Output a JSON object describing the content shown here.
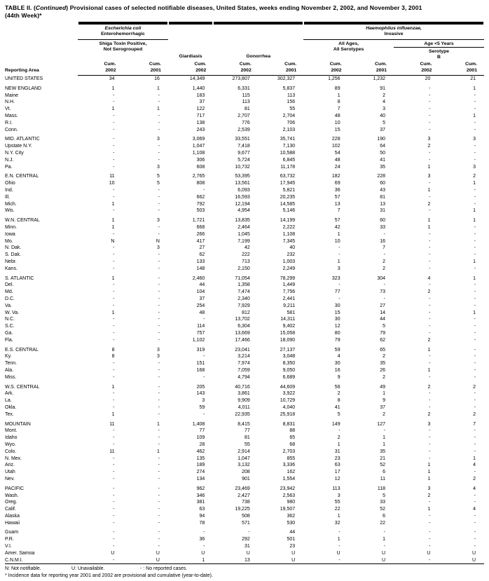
{
  "title": {
    "part1": "TABLE II. (",
    "continued": "Continued",
    "part2": ") Provisional cases of selected notifiable diseases, United States, weeks ending November 2, 2002, and November 3, 2001",
    "line2": "(44th Week)*"
  },
  "header": {
    "reporting_area": "Reporting Area",
    "ecoli_group_italic": "Escherichia coli",
    "ecoli_group_rest": "Enterohemorrhagic",
    "shiga": "Shiga Toxin Positive,\nNot Serogrouped",
    "giardiasis": "Giardiasis",
    "gonorrhea": "Gonorrhea",
    "hflu_group_italic": "Haemophilus influenzae,",
    "hflu_group_rest": "Invasive",
    "all_ages": "All Ages,\nAll Serotypes",
    "age_under_5": "Age <5 Years",
    "serotype_b": "Serotype\nB",
    "cum_2002": "Cum.\n2002",
    "cum_2001": "Cum.\n2001"
  },
  "table": {
    "sections": [
      {
        "rows": [
          {
            "area": "UNITED STATES",
            "values": [
              "34",
              "16",
              "14,349",
              "273,807",
              "302,327",
              "1,256",
              "1,232",
              "20",
              "21"
            ]
          }
        ]
      },
      {
        "rows": [
          {
            "area": "NEW ENGLAND",
            "values": [
              "1",
              "1",
              "1,440",
              "6,331",
              "5,837",
              "89",
              "91",
              "-",
              "1"
            ]
          },
          {
            "area": "Maine",
            "values": [
              "-",
              "-",
              "183",
              "115",
              "113",
              "1",
              "2",
              "-",
              "-"
            ]
          },
          {
            "area": "N.H.",
            "values": [
              "-",
              "-",
              "37",
              "113",
              "156",
              "8",
              "4",
              "-",
              "-"
            ]
          },
          {
            "area": "Vt.",
            "values": [
              "1",
              "1",
              "122",
              "81",
              "55",
              "7",
              "3",
              "-",
              "-"
            ]
          },
          {
            "area": "Mass.",
            "values": [
              "-",
              "-",
              "717",
              "2,707",
              "2,704",
              "48",
              "40",
              "-",
              "1"
            ]
          },
          {
            "area": "R.I.",
            "values": [
              "-",
              "-",
              "138",
              "776",
              "706",
              "10",
              "5",
              "-",
              "-"
            ]
          },
          {
            "area": "Conn.",
            "values": [
              "-",
              "-",
              "243",
              "2,539",
              "2,103",
              "15",
              "37",
              "-",
              "-"
            ]
          }
        ]
      },
      {
        "rows": [
          {
            "area": "MID. ATLANTIC",
            "values": [
              "-",
              "3",
              "3,069",
              "33,551",
              "35,741",
              "228",
              "190",
              "3",
              "3"
            ]
          },
          {
            "area": "Upstate N.Y.",
            "values": [
              "-",
              "-",
              "1,047",
              "7,418",
              "7,130",
              "102",
              "64",
              "2",
              "-"
            ]
          },
          {
            "area": "N.Y. City",
            "values": [
              "-",
              "-",
              "1,108",
              "9,677",
              "10,588",
              "54",
              "50",
              "-",
              "-"
            ]
          },
          {
            "area": "N.J.",
            "values": [
              "-",
              "-",
              "306",
              "5,724",
              "6,845",
              "48",
              "41",
              "-",
              "-"
            ]
          },
          {
            "area": "Pa.",
            "values": [
              "-",
              "3",
              "608",
              "10,732",
              "11,178",
              "24",
              "35",
              "1",
              "3"
            ]
          }
        ]
      },
      {
        "rows": [
          {
            "area": "E.N. CENTRAL",
            "values": [
              "11",
              "5",
              "2,765",
              "53,395",
              "63,732",
              "182",
              "228",
              "3",
              "2"
            ]
          },
          {
            "area": "Ohio",
            "values": [
              "10",
              "5",
              "808",
              "13,561",
              "17,945",
              "69",
              "60",
              "-",
              "1"
            ]
          },
          {
            "area": "Ind.",
            "values": [
              "-",
              "-",
              "-",
              "6,093",
              "5,821",
              "36",
              "43",
              "1",
              "-"
            ]
          },
          {
            "area": "Ill.",
            "values": [
              "-",
              "-",
              "662",
              "16,593",
              "20,235",
              "57",
              "81",
              "-",
              "-"
            ]
          },
          {
            "area": "Mich.",
            "values": [
              "1",
              "-",
              "792",
              "12,194",
              "14,585",
              "13",
              "13",
              "2",
              "-"
            ]
          },
          {
            "area": "Wis.",
            "values": [
              "-",
              "-",
              "503",
              "4,954",
              "5,146",
              "7",
              "31",
              "-",
              "1"
            ]
          }
        ]
      },
      {
        "rows": [
          {
            "area": "W.N. CENTRAL",
            "values": [
              "1",
              "3",
              "1,721",
              "13,835",
              "14,199",
              "57",
              "60",
              "1",
              "1"
            ]
          },
          {
            "area": "Minn.",
            "values": [
              "1",
              "-",
              "668",
              "2,464",
              "2,222",
              "42",
              "33",
              "1",
              "-"
            ]
          },
          {
            "area": "Iowa",
            "values": [
              "-",
              "-",
              "266",
              "1,045",
              "1,108",
              "1",
              "-",
              "-",
              "-"
            ]
          },
          {
            "area": "Mo.",
            "values": [
              "N",
              "N",
              "417",
              "7,199",
              "7,345",
              "10",
              "16",
              "-",
              "-"
            ]
          },
          {
            "area": "N. Dak.",
            "values": [
              "-",
              "3",
              "27",
              "42",
              "40",
              "-",
              "7",
              "-",
              "-"
            ]
          },
          {
            "area": "S. Dak.",
            "values": [
              "-",
              "-",
              "62",
              "222",
              "232",
              "-",
              "-",
              "-",
              "-"
            ]
          },
          {
            "area": "Nebr.",
            "values": [
              "-",
              "-",
              "133",
              "713",
              "1,003",
              "1",
              "2",
              "-",
              "1"
            ]
          },
          {
            "area": "Kans.",
            "values": [
              "-",
              "-",
              "148",
              "2,150",
              "2,249",
              "3",
              "2",
              "-",
              "-"
            ]
          }
        ]
      },
      {
        "rows": [
          {
            "area": "S. ATLANTIC",
            "values": [
              "1",
              "-",
              "2,460",
              "71,054",
              "78,299",
              "323",
              "304",
              "4",
              "1"
            ]
          },
          {
            "area": "Del.",
            "values": [
              "-",
              "-",
              "44",
              "1,358",
              "1,449",
              "-",
              "-",
              "-",
              "-"
            ]
          },
          {
            "area": "Md.",
            "values": [
              "-",
              "-",
              "104",
              "7,474",
              "7,756",
              "77",
              "73",
              "2",
              "-"
            ]
          },
          {
            "area": "D.C.",
            "values": [
              "-",
              "-",
              "37",
              "2,340",
              "2,441",
              "-",
              "-",
              "-",
              "-"
            ]
          },
          {
            "area": "Va.",
            "values": [
              "-",
              "-",
              "254",
              "7,929",
              "9,211",
              "30",
              "27",
              "-",
              "-"
            ]
          },
          {
            "area": "W. Va.",
            "values": [
              "1",
              "-",
              "48",
              "812",
              "581",
              "15",
              "14",
              "-",
              "1"
            ]
          },
          {
            "area": "N.C.",
            "values": [
              "-",
              "-",
              "-",
              "13,702",
              "14,311",
              "30",
              "44",
              "-",
              "-"
            ]
          },
          {
            "area": "S.C.",
            "values": [
              "-",
              "-",
              "114",
              "6,304",
              "9,402",
              "12",
              "5",
              "-",
              "-"
            ]
          },
          {
            "area": "Ga.",
            "values": [
              "-",
              "-",
              "757",
              "13,669",
              "15,058",
              "80",
              "79",
              "-",
              "-"
            ]
          },
          {
            "area": "Fla.",
            "values": [
              "-",
              "-",
              "1,102",
              "17,466",
              "18,090",
              "79",
              "62",
              "2",
              "-"
            ]
          }
        ]
      },
      {
        "rows": [
          {
            "area": "E.S. CENTRAL",
            "values": [
              "8",
              "3",
              "319",
              "23,041",
              "27,137",
              "59",
              "65",
              "1",
              "-"
            ]
          },
          {
            "area": "Ky.",
            "values": [
              "8",
              "3",
              "-",
              "3,214",
              "3,048",
              "4",
              "2",
              "-",
              "-"
            ]
          },
          {
            "area": "Tenn.",
            "values": [
              "-",
              "-",
              "151",
              "7,974",
              "8,350",
              "30",
              "35",
              "-",
              "-"
            ]
          },
          {
            "area": "Ala.",
            "values": [
              "-",
              "-",
              "168",
              "7,059",
              "9,050",
              "16",
              "26",
              "1",
              "-"
            ]
          },
          {
            "area": "Miss.",
            "values": [
              "-",
              "-",
              "-",
              "4,794",
              "6,689",
              "9",
              "2",
              "-",
              "-"
            ]
          }
        ]
      },
      {
        "rows": [
          {
            "area": "W.S. CENTRAL",
            "values": [
              "1",
              "-",
              "205",
              "40,716",
              "44,609",
              "56",
              "49",
              "2",
              "2"
            ]
          },
          {
            "area": "Ark.",
            "values": [
              "-",
              "-",
              "143",
              "3,861",
              "3,922",
              "2",
              "1",
              "-",
              "-"
            ]
          },
          {
            "area": "La.",
            "values": [
              "-",
              "-",
              "3",
              "9,909",
              "10,729",
              "8",
              "9",
              "-",
              "-"
            ]
          },
          {
            "area": "Okla.",
            "values": [
              "-",
              "-",
              "59",
              "4,011",
              "4,040",
              "41",
              "37",
              "-",
              "-"
            ]
          },
          {
            "area": "Tex.",
            "values": [
              "1",
              "-",
              "-",
              "22,935",
              "25,918",
              "5",
              "2",
              "2",
              "2"
            ]
          }
        ]
      },
      {
        "rows": [
          {
            "area": "MOUNTAIN",
            "values": [
              "11",
              "1",
              "1,408",
              "8,415",
              "8,831",
              "149",
              "127",
              "3",
              "7"
            ]
          },
          {
            "area": "Mont.",
            "values": [
              "-",
              "-",
              "77",
              "77",
              "88",
              "-",
              "-",
              "-",
              "-"
            ]
          },
          {
            "area": "Idaho",
            "values": [
              "-",
              "-",
              "109",
              "81",
              "65",
              "2",
              "1",
              "-",
              "-"
            ]
          },
          {
            "area": "Wyo.",
            "values": [
              "-",
              "-",
              "28",
              "55",
              "68",
              "1",
              "1",
              "-",
              "-"
            ]
          },
          {
            "area": "Colo.",
            "values": [
              "11",
              "1",
              "462",
              "2,914",
              "2,703",
              "31",
              "35",
              "-",
              "-"
            ]
          },
          {
            "area": "N. Mex.",
            "values": [
              "-",
              "-",
              "135",
              "1,047",
              "855",
              "23",
              "21",
              "-",
              "1"
            ]
          },
          {
            "area": "Ariz.",
            "values": [
              "-",
              "-",
              "189",
              "3,132",
              "3,336",
              "63",
              "52",
              "1",
              "4"
            ]
          },
          {
            "area": "Utah",
            "values": [
              "-",
              "-",
              "274",
              "208",
              "162",
              "17",
              "6",
              "1",
              "-"
            ]
          },
          {
            "area": "Nev.",
            "values": [
              "-",
              "-",
              "134",
              "901",
              "1,554",
              "12",
              "11",
              "1",
              "2"
            ]
          }
        ]
      },
      {
        "rows": [
          {
            "area": "PACIFIC",
            "values": [
              "-",
              "-",
              "962",
              "23,469",
              "23,942",
              "113",
              "118",
              "3",
              "4"
            ]
          },
          {
            "area": "Wash.",
            "values": [
              "-",
              "-",
              "346",
              "2,427",
              "2,563",
              "3",
              "5",
              "2",
              "-"
            ]
          },
          {
            "area": "Oreg.",
            "values": [
              "-",
              "-",
              "381",
              "738",
              "980",
              "55",
              "33",
              "-",
              "-"
            ]
          },
          {
            "area": "Calif.",
            "values": [
              "-",
              "-",
              "63",
              "19,225",
              "19,507",
              "22",
              "52",
              "1",
              "4"
            ]
          },
          {
            "area": "Alaska",
            "values": [
              "-",
              "-",
              "94",
              "508",
              "362",
              "1",
              "6",
              "-",
              "-"
            ]
          },
          {
            "area": "Hawaii",
            "values": [
              "-",
              "-",
              "78",
              "571",
              "530",
              "32",
              "22",
              "-",
              "-"
            ]
          }
        ]
      },
      {
        "rows": [
          {
            "area": "Guam",
            "values": [
              "-",
              "-",
              "-",
              "-",
              "44",
              "-",
              "-",
              "-",
              "-"
            ]
          },
          {
            "area": "P.R.",
            "values": [
              "-",
              "-",
              "36",
              "292",
              "501",
              "1",
              "1",
              "-",
              "-"
            ]
          },
          {
            "area": "V.I.",
            "values": [
              "-",
              "-",
              "-",
              "31",
              "23",
              "-",
              "-",
              "-",
              "-"
            ]
          },
          {
            "area": "Amer. Samoa",
            "values": [
              "U",
              "U",
              "U",
              "U",
              "U",
              "U",
              "U",
              "U",
              "U"
            ]
          },
          {
            "area": "C.N.M.I.",
            "values": [
              "-",
              "U",
              "1",
              "13",
              "U",
              "-",
              "U",
              "-",
              "U"
            ]
          }
        ]
      }
    ]
  },
  "footnotes": {
    "not_notifiable": "N: Not notifiable.",
    "unavailable": "U: Unavailable.",
    "no_cases": "- : No reported cases.",
    "incidence": "* Incidence data for reporting year 2001 and 2002 are provisional and cumulative (year-to-date)."
  }
}
